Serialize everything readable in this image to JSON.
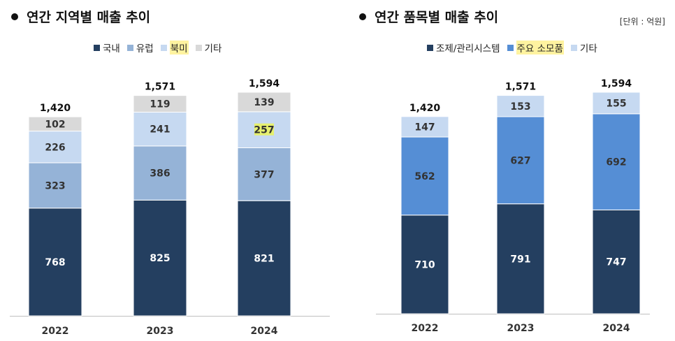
{
  "unit_label": "[단위 : 억원]",
  "chart_data": [
    {
      "type": "bar",
      "stacked": true,
      "title": "연간 지역별 매출 추이",
      "categories": [
        "2022",
        "2023",
        "2024"
      ],
      "totals": [
        "1,420",
        "1,571",
        "1,594"
      ],
      "series": [
        {
          "name": "국내",
          "values": [
            768,
            825,
            821
          ],
          "color": "#243f60",
          "label_color": "#ffffff"
        },
        {
          "name": "유럽",
          "values": [
            323,
            386,
            377
          ],
          "color": "#95b3d7",
          "label_color": "#333333"
        },
        {
          "name": "북미",
          "values": [
            226,
            241,
            257
          ],
          "color": "#c6d9f1",
          "label_color": "#333333",
          "highlight": true
        },
        {
          "name": "기타",
          "values": [
            102,
            119,
            139
          ],
          "color": "#d9d9d9",
          "label_color": "#333333"
        }
      ],
      "highlighted_labels": [
        {
          "series": "북미",
          "category": "2024"
        }
      ],
      "ylim": [
        0,
        1594
      ]
    },
    {
      "type": "bar",
      "stacked": true,
      "title": "연간 품목별 매출 추이",
      "categories": [
        "2022",
        "2023",
        "2024"
      ],
      "totals": [
        "1,420",
        "1,571",
        "1,594"
      ],
      "series": [
        {
          "name": "조제/관리시스템",
          "values": [
            710,
            791,
            747
          ],
          "color": "#243f60",
          "label_color": "#ffffff"
        },
        {
          "name": "주요 소모품",
          "values": [
            562,
            627,
            692
          ],
          "color": "#558ed5",
          "label_color": "#333333",
          "highlight": true
        },
        {
          "name": "기타",
          "values": [
            147,
            153,
            155
          ],
          "color": "#c6d9f1",
          "label_color": "#333333"
        }
      ],
      "ylim": [
        0,
        1594
      ]
    }
  ]
}
